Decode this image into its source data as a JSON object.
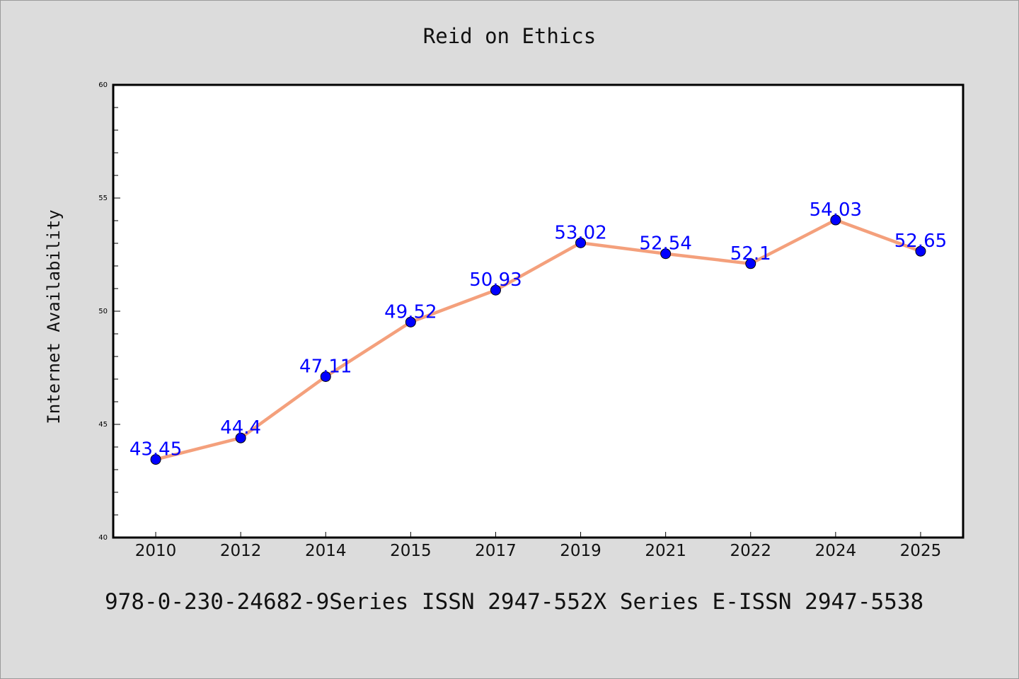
{
  "chart_data": {
    "type": "line",
    "title": "Reid on Ethics",
    "xlabel": "",
    "ylabel": "Internet Availability",
    "categories": [
      "2010",
      "2012",
      "2014",
      "2015",
      "2017",
      "2019",
      "2021",
      "2022",
      "2024",
      "2025"
    ],
    "series": [
      {
        "values": [
          43.45,
          44.4,
          47.11,
          49.52,
          50.93,
          53.02,
          52.54,
          52.1,
          54.03,
          52.65
        ],
        "labels": [
          "43.45",
          "44.4",
          "47.11",
          "49.52",
          "50.93",
          "53.02",
          "52.54",
          "52.1",
          "54.03",
          "52.65"
        ]
      }
    ],
    "ylim": [
      40,
      60
    ],
    "yticks": [
      "40",
      "45",
      "50",
      "55",
      "60"
    ],
    "grid": false,
    "colors": {
      "line": "#f4a07c",
      "marker": "#0000ff",
      "data_label": "#0000ff",
      "background": "#dcdcdc",
      "plot_area": "#ffffff"
    }
  },
  "footer": {
    "text": "978-0-230-24682-9Series ISSN 2947-552X Series E-ISSN 2947-5538"
  }
}
